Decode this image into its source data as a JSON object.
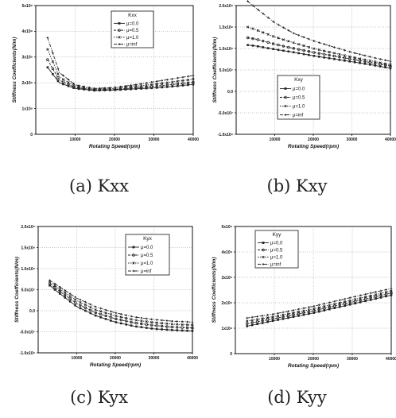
{
  "figures": [
    {
      "caption": "(a) Kxx"
    },
    {
      "caption": "(b) Kxy"
    },
    {
      "caption": "(c) Kyx"
    },
    {
      "caption": "(d) Kyy"
    }
  ],
  "chart_data": [
    {
      "type": "line",
      "title": "",
      "xlabel": "Rotating Speed(rpm)",
      "ylabel": "Stiffness Coefficients(N/m)",
      "xlim": [
        0,
        40000
      ],
      "ylim": [
        0,
        500000000
      ],
      "x_ticks": [
        "10000",
        "20000",
        "30000",
        "40000"
      ],
      "y_ticks": [
        "0",
        "1x10⁸",
        "2x10⁸",
        "3x10⁸",
        "4x10⁸",
        "5x10⁸"
      ],
      "grid": true,
      "legend_title": "Kxx",
      "legend_position": "top-right",
      "x": [
        3000,
        6000,
        10000,
        15000,
        20000,
        25000,
        30000,
        35000,
        40000
      ],
      "series": [
        {
          "name": "μ=0.0",
          "marker": "square",
          "values": [
            260000000,
            200000000,
            178000000,
            170000000,
            172000000,
            176000000,
            180000000,
            186000000,
            194000000
          ]
        },
        {
          "name": "μ=0.5",
          "marker": "circle",
          "values": [
            290000000,
            210000000,
            182000000,
            172000000,
            174000000,
            180000000,
            186000000,
            194000000,
            202000000
          ]
        },
        {
          "name": "μ=1.0",
          "marker": "x",
          "values": [
            330000000,
            222000000,
            186000000,
            175000000,
            178000000,
            186000000,
            194000000,
            204000000,
            214000000
          ]
        },
        {
          "name": "μ=inf",
          "marker": "plus",
          "values": [
            375000000,
            240000000,
            192000000,
            178000000,
            182000000,
            192000000,
            204000000,
            216000000,
            228000000
          ]
        }
      ]
    },
    {
      "type": "line",
      "title": "",
      "xlabel": "Rotating Speed(rpm)",
      "ylabel": "Stiffness Coefficients(N/m)",
      "xlim": [
        0,
        40000
      ],
      "ylim": [
        -100000000,
        200000000
      ],
      "x_ticks": [
        "10000",
        "20000",
        "30000",
        "40000"
      ],
      "y_ticks": [
        "-1.0x10⁸",
        "-5.0x10⁷",
        "0.0",
        "5.0x10⁷",
        "1.0x10⁸",
        "1.5x10⁸",
        "2.0x10⁸"
      ],
      "grid": true,
      "legend_title": "Kxy",
      "legend_position": "center",
      "x": [
        3000,
        5000,
        10000,
        15000,
        20000,
        25000,
        30000,
        35000,
        40000
      ],
      "series": [
        {
          "name": "μ=0.0",
          "marker": "square",
          "values": [
            108000000,
            106000000,
            98000000,
            91000000,
            83000000,
            76000000,
            69000000,
            62000000,
            54000000
          ]
        },
        {
          "name": "μ=0.5",
          "marker": "circle",
          "values": [
            125000000,
            122000000,
            110000000,
            100000000,
            91000000,
            83000000,
            75000000,
            67000000,
            59000000
          ]
        },
        {
          "name": "μ=1.0",
          "marker": "x",
          "values": [
            150000000,
            144000000,
            127000000,
            113000000,
            100000000,
            90000000,
            80000000,
            71000000,
            62000000
          ]
        },
        {
          "name": "μ=inf",
          "marker": "plus",
          "values": [
            210000000,
            195000000,
            160000000,
            135000000,
            118000000,
            104000000,
            91000000,
            80000000,
            70000000
          ]
        }
      ]
    },
    {
      "type": "line",
      "title": "",
      "xlabel": "Rotating Speed(rpm)",
      "ylabel": "Stiffness Coefficients(N/m)",
      "xlim": [
        0,
        40000
      ],
      "ylim": [
        -100000000,
        200000000
      ],
      "x_ticks": [
        "10000",
        "20000",
        "30000",
        "40000"
      ],
      "y_ticks": [
        "-1.0x10⁸",
        "-5.0x10⁷",
        "0.0",
        "5.0x10⁷",
        "1.0x10⁸",
        "1.5x10⁸",
        "2.0x10⁸"
      ],
      "grid": true,
      "legend_title": "Kyx",
      "legend_position": "top-right",
      "x": [
        3000,
        5000,
        10000,
        15000,
        20000,
        25000,
        30000,
        35000,
        40000
      ],
      "series": [
        {
          "name": "μ=0.0",
          "marker": "square",
          "values": [
            60000000,
            45000000,
            10000000,
            -12000000,
            -27000000,
            -37000000,
            -43000000,
            -46000000,
            -48000000
          ]
        },
        {
          "name": "μ=0.5",
          "marker": "circle",
          "values": [
            64000000,
            50000000,
            17000000,
            -5000000,
            -19000000,
            -29000000,
            -35000000,
            -39000000,
            -41000000
          ]
        },
        {
          "name": "μ=1.0",
          "marker": "x",
          "values": [
            68000000,
            55000000,
            24000000,
            2000000,
            -12000000,
            -22000000,
            -28000000,
            -32000000,
            -34000000
          ]
        },
        {
          "name": "μ=inf",
          "marker": "plus",
          "values": [
            72000000,
            60000000,
            30000000,
            9000000,
            -5000000,
            -15000000,
            -21000000,
            -25000000,
            -27000000
          ]
        }
      ]
    },
    {
      "type": "line",
      "title": "",
      "xlabel": "Rotating Speed(rpm)",
      "ylabel": "Stiffness Coefficients(N/m)",
      "xlim": [
        0,
        40000
      ],
      "ylim": [
        0,
        500000000
      ],
      "x_ticks": [
        "10000",
        "20000",
        "30000",
        "40000"
      ],
      "y_ticks": [
        "0",
        "1x10⁸",
        "2x10⁸",
        "3x10⁸",
        "4x10⁸",
        "5x10⁸"
      ],
      "grid": true,
      "legend_title": "Kyy",
      "legend_position": "top-left",
      "x": [
        3000,
        10000,
        20000,
        30000,
        40000
      ],
      "series": [
        {
          "name": "μ=0.0",
          "marker": "square",
          "values": [
            108000000,
            130000000,
            160000000,
            195000000,
            230000000
          ]
        },
        {
          "name": "μ=0.5",
          "marker": "circle",
          "values": [
            118000000,
            138000000,
            168000000,
            203000000,
            238000000
          ]
        },
        {
          "name": "μ=1.0",
          "marker": "x",
          "values": [
            128000000,
            146000000,
            176000000,
            211000000,
            246000000
          ]
        },
        {
          "name": "μ=inf",
          "marker": "plus",
          "values": [
            140000000,
            156000000,
            186000000,
            222000000,
            256000000
          ]
        }
      ]
    }
  ]
}
